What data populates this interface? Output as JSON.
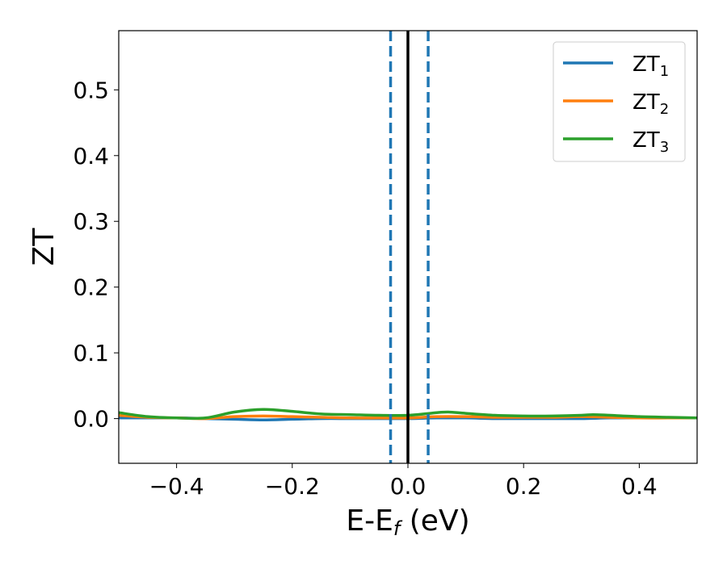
{
  "chart_data": {
    "type": "line",
    "xlabel": "E-E",
    "xlabel_sub": "f",
    "xlabel_unit": " (eV)",
    "ylabel": "ZT",
    "xlim": [
      -0.5,
      0.5
    ],
    "ylim": [
      -0.068,
      0.59
    ],
    "xticks": [
      -0.4,
      -0.2,
      0.0,
      0.2,
      0.4
    ],
    "xtick_labels": [
      "−0.4",
      "−0.2",
      "0.0",
      "0.2",
      "0.4"
    ],
    "yticks": [
      0.0,
      0.1,
      0.2,
      0.3,
      0.4,
      0.5
    ],
    "ytick_labels": [
      "0.0",
      "0.1",
      "0.2",
      "0.3",
      "0.4",
      "0.5"
    ],
    "grid": false,
    "legend_placement": "top-right",
    "vlines": [
      {
        "x": 0.0,
        "color": "#000000",
        "style": "solid"
      },
      {
        "x": -0.03,
        "color": "#1f77b4",
        "style": "dashed"
      },
      {
        "x": 0.035,
        "color": "#1f77b4",
        "style": "dashed"
      }
    ],
    "series": [
      {
        "name": "ZT",
        "name_sub": "1",
        "color": "#1f77b4",
        "x": [
          -0.5,
          -0.4,
          -0.35,
          -0.3,
          -0.25,
          -0.2,
          -0.15,
          -0.1,
          -0.05,
          0.0,
          0.05,
          0.1,
          0.15,
          0.2,
          0.25,
          0.3,
          0.35,
          0.4,
          0.45,
          0.5
        ],
        "y": [
          0.001,
          0.001,
          0.0,
          -0.001,
          -0.002,
          -0.001,
          0.0,
          0.0,
          0.0,
          0.0,
          0.001,
          0.001,
          0.0,
          0.0,
          0.0,
          0.0,
          0.001,
          0.001,
          0.001,
          0.001
        ]
      },
      {
        "name": "ZT",
        "name_sub": "2",
        "color": "#ff7f0e",
        "x": [
          -0.5,
          -0.45,
          -0.4,
          -0.35,
          -0.3,
          -0.25,
          -0.2,
          -0.15,
          -0.1,
          -0.05,
          0.0,
          0.05,
          0.1,
          0.15,
          0.2,
          0.25,
          0.3,
          0.35,
          0.4,
          0.45,
          0.5
        ],
        "y": [
          0.005,
          0.002,
          0.001,
          0.0,
          0.003,
          0.004,
          0.003,
          0.002,
          0.001,
          0.001,
          0.001,
          0.003,
          0.003,
          0.002,
          0.002,
          0.002,
          0.003,
          0.002,
          0.001,
          0.001,
          0.001
        ]
      },
      {
        "name": "ZT",
        "name_sub": "3",
        "color": "#2ca02c",
        "x": [
          -0.5,
          -0.45,
          -0.4,
          -0.35,
          -0.3,
          -0.25,
          -0.2,
          -0.15,
          -0.1,
          -0.05,
          0.0,
          0.05,
          0.07,
          0.1,
          0.15,
          0.2,
          0.25,
          0.3,
          0.32,
          0.35,
          0.4,
          0.45,
          0.5
        ],
        "y": [
          0.009,
          0.003,
          0.001,
          0.001,
          0.01,
          0.014,
          0.011,
          0.007,
          0.006,
          0.005,
          0.005,
          0.009,
          0.01,
          0.008,
          0.005,
          0.004,
          0.004,
          0.005,
          0.006,
          0.005,
          0.003,
          0.002,
          0.001
        ]
      }
    ]
  }
}
